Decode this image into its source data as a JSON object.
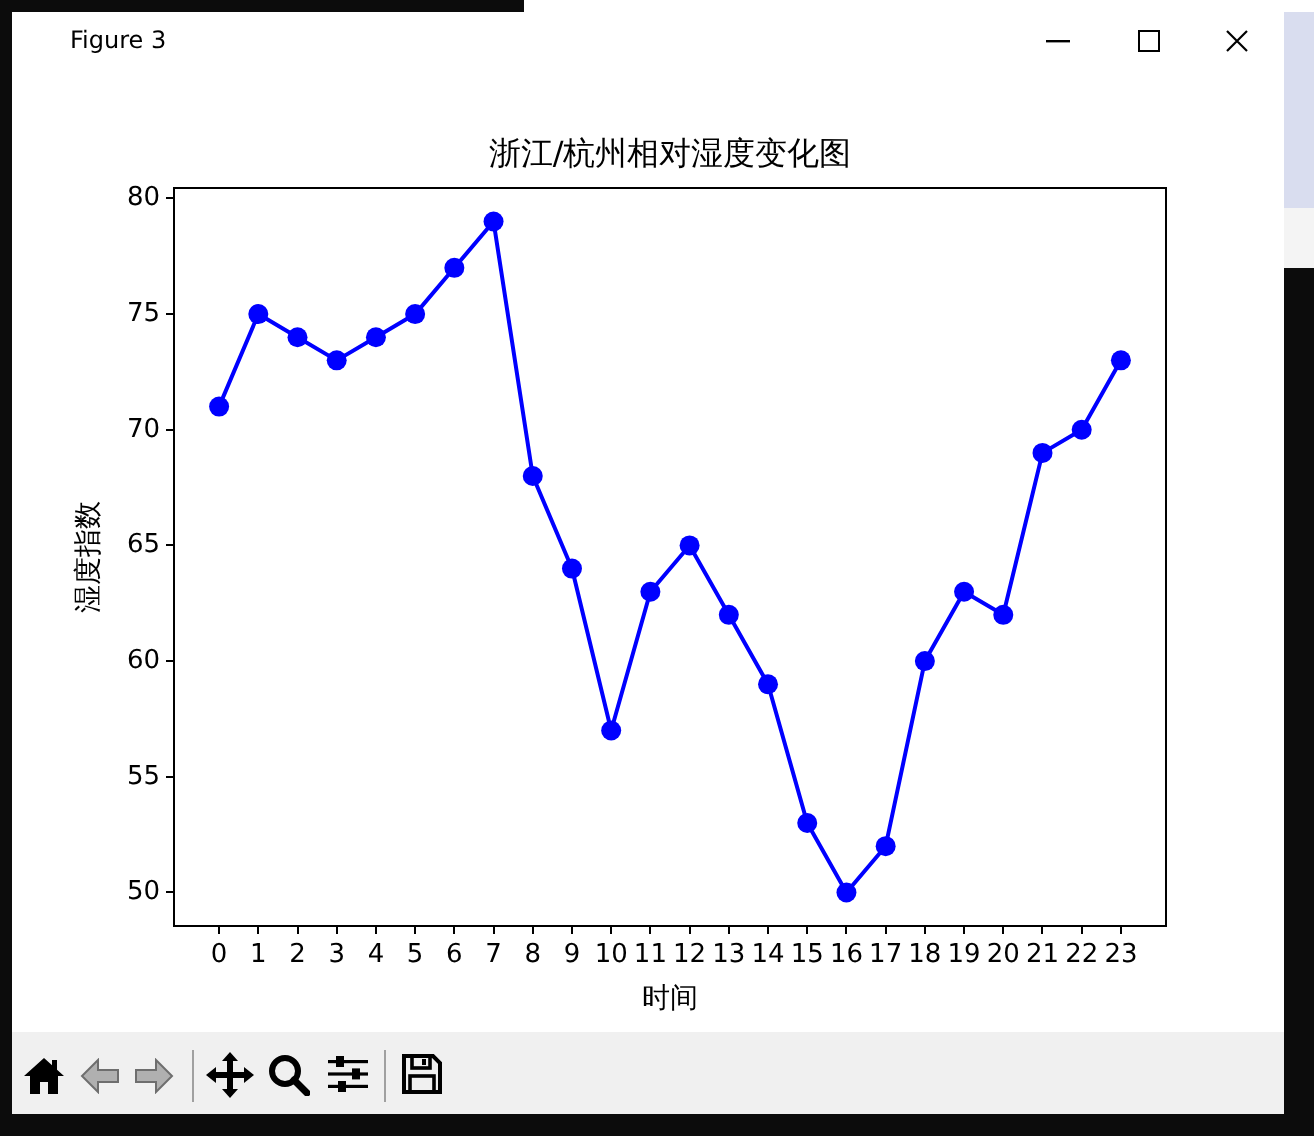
{
  "chart_data": {
    "type": "line",
    "title": "浙江/杭州相对湿度变化图",
    "xlabel": "时间",
    "ylabel": "湿度指数",
    "annotations": [
      "Figure 3"
    ],
    "x": [
      0,
      1,
      2,
      3,
      4,
      5,
      6,
      7,
      8,
      9,
      10,
      11,
      12,
      13,
      14,
      15,
      16,
      17,
      18,
      19,
      20,
      21,
      22,
      23
    ],
    "series": [
      {
        "color": "#0000ff",
        "values": [
          71,
          75,
          74,
          73,
          74,
          75,
          77,
          79,
          68,
          64,
          57,
          63,
          65,
          62,
          59,
          53,
          50,
          52,
          60,
          63,
          62,
          69,
          70,
          73
        ]
      }
    ],
    "xlim": [
      -1.15,
      24.15
    ],
    "ylim": [
      48.55,
      80.45
    ],
    "xticks": [
      0,
      1,
      2,
      3,
      4,
      5,
      6,
      7,
      8,
      9,
      10,
      11,
      12,
      13,
      14,
      15,
      16,
      17,
      18,
      19,
      20,
      21,
      22,
      23
    ],
    "yticks": [
      50,
      55,
      60,
      65,
      70,
      75,
      80
    ],
    "marker": "circle",
    "line_style": "solid"
  }
}
